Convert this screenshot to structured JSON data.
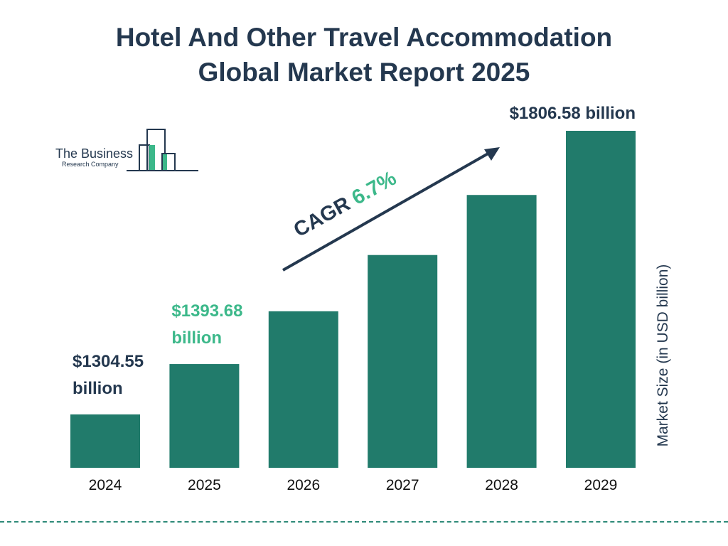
{
  "title_line1": "Hotel And Other Travel Accommodation",
  "title_line2": "Global Market Report 2025",
  "logo": {
    "name": "The Business",
    "sub": "Research Company"
  },
  "colors": {
    "bar": "#217b6b",
    "text": "#24384f",
    "accent": "#3cb88a",
    "dash": "#2e8a78"
  },
  "chart_data": {
    "type": "bar",
    "categories": [
      "2024",
      "2025",
      "2026",
      "2027",
      "2028",
      "2029"
    ],
    "values": [
      1304.55,
      1393.68,
      1487.1,
      1586.7,
      1693.0,
      1806.58
    ],
    "ylabel": "Market Size (in USD billion)",
    "data_labels": [
      {
        "index": 0,
        "line1": "$1304.55",
        "line2": "billion",
        "color": "#24384f"
      },
      {
        "index": 1,
        "line1": "$1393.68",
        "line2": "billion",
        "color": "#3cb88a"
      },
      {
        "index": 5,
        "line1": "$1806.58 billion",
        "line2": "",
        "color": "#24384f"
      }
    ],
    "cagr": {
      "label": "CAGR",
      "value": "6.7%"
    },
    "grid": false
  }
}
